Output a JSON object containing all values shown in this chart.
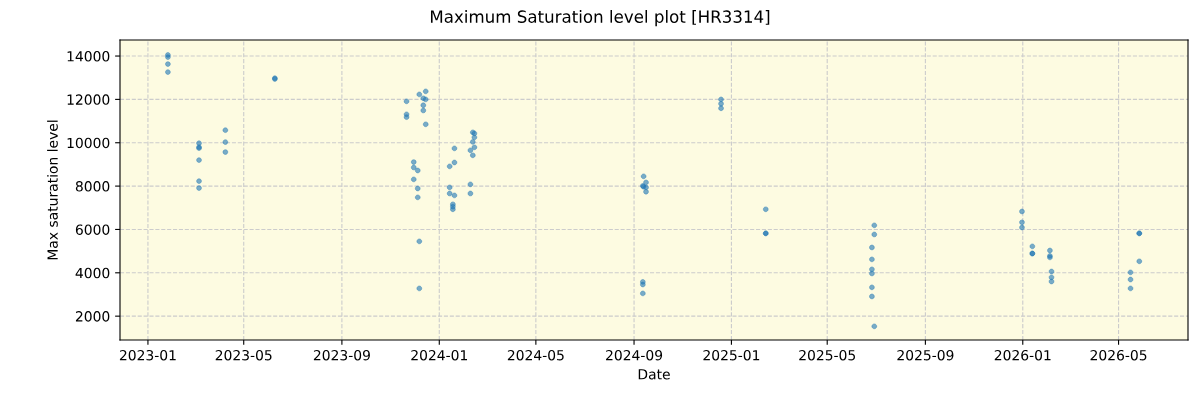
{
  "chart_data": {
    "type": "scatter",
    "title": "Maximum Saturation level plot [HR3314]",
    "xlabel": "Date",
    "ylabel": "Max saturation level",
    "grid": true,
    "marker": "circle",
    "xlim": [
      "2022-11-27",
      "2026-07-27"
    ],
    "ylim": [
      900,
      14740
    ],
    "xticks": [
      {
        "value": "2023-01-01",
        "label": "2023-01"
      },
      {
        "value": "2023-05-01",
        "label": "2023-05"
      },
      {
        "value": "2023-09-01",
        "label": "2023-09"
      },
      {
        "value": "2024-01-01",
        "label": "2024-01"
      },
      {
        "value": "2024-05-01",
        "label": "2024-05"
      },
      {
        "value": "2024-09-01",
        "label": "2024-09"
      },
      {
        "value": "2025-01-01",
        "label": "2025-01"
      },
      {
        "value": "2025-05-01",
        "label": "2025-05"
      },
      {
        "value": "2025-09-01",
        "label": "2025-09"
      },
      {
        "value": "2026-01-01",
        "label": "2026-01"
      },
      {
        "value": "2026-05-01",
        "label": "2026-05"
      }
    ],
    "yticks": [
      2000,
      4000,
      6000,
      8000,
      10000,
      12000,
      14000
    ],
    "series": [
      {
        "color": "#1f77b4",
        "x": [
          "2023-01-26",
          "2023-01-26",
          "2023-01-26",
          "2023-01-26",
          "2023-03-06",
          "2023-03-06",
          "2023-03-06",
          "2023-03-06",
          "2023-03-06",
          "2023-03-06",
          "2023-04-08",
          "2023-04-08",
          "2023-04-08",
          "2023-06-09",
          "2023-06-09",
          "2023-11-21",
          "2023-11-21",
          "2023-11-21",
          "2023-12-07",
          "2023-12-15",
          "2023-12-12",
          "2023-12-15",
          "2023-12-12",
          "2023-12-12",
          "2023-12-15",
          "2023-11-30",
          "2023-11-30",
          "2023-12-05",
          "2023-11-30",
          "2023-12-05",
          "2023-12-05",
          "2023-12-07",
          "2023-12-07",
          "2024-02-12",
          "2024-02-14",
          "2024-02-14",
          "2024-02-12",
          "2024-01-20",
          "2024-02-14",
          "2024-02-09",
          "2024-02-12",
          "2024-01-20",
          "2024-01-14",
          "2024-02-09",
          "2024-01-14",
          "2024-01-14",
          "2024-01-20",
          "2024-02-09",
          "2024-01-18",
          "2024-01-18",
          "2024-01-18",
          "2024-12-19",
          "2024-12-19",
          "2024-12-19",
          "2024-09-13",
          "2024-09-16",
          "2024-09-12",
          "2024-09-16",
          "2024-09-13",
          "2024-09-16",
          "2025-02-13",
          "2025-02-13",
          "2025-02-13",
          "2024-09-12",
          "2024-09-12",
          "2024-09-12",
          "2025-06-29",
          "2025-06-29",
          "2025-06-26",
          "2025-06-26",
          "2025-06-26",
          "2025-06-26",
          "2025-06-26",
          "2025-06-26",
          "2025-06-29",
          "2025-12-31",
          "2025-12-31",
          "2025-12-31",
          "2026-01-13",
          "2026-01-13",
          "2026-01-13",
          "2026-02-04",
          "2026-02-04",
          "2026-02-04",
          "2026-02-06",
          "2026-02-06",
          "2026-02-06",
          "2026-05-27",
          "2026-05-27",
          "2026-05-27",
          "2026-05-16",
          "2026-05-16",
          "2026-05-16"
        ],
        "values": [
          14050,
          13950,
          13630,
          13260,
          9980,
          9800,
          9750,
          9200,
          8230,
          7910,
          10580,
          10030,
          9570,
          12980,
          12940,
          11910,
          11310,
          11180,
          12230,
          12370,
          12050,
          12000,
          11730,
          11490,
          10850,
          9110,
          8860,
          8720,
          8310,
          7890,
          7480,
          5450,
          3280,
          10480,
          10430,
          10250,
          10040,
          9740,
          9790,
          9650,
          9420,
          9090,
          8910,
          8080,
          7940,
          7660,
          7570,
          7660,
          7160,
          7050,
          6930,
          12000,
          11800,
          11590,
          8450,
          8170,
          8010,
          7940,
          7970,
          7740,
          6930,
          5820,
          5820,
          3580,
          3460,
          3050,
          6190,
          5770,
          5170,
          4620,
          4160,
          3970,
          3330,
          2910,
          1530,
          6830,
          6330,
          6090,
          5220,
          4890,
          4890,
          5030,
          4780,
          4710,
          4060,
          3790,
          3600,
          5820,
          5820,
          4530,
          4020,
          3690,
          3280
        ]
      }
    ]
  }
}
